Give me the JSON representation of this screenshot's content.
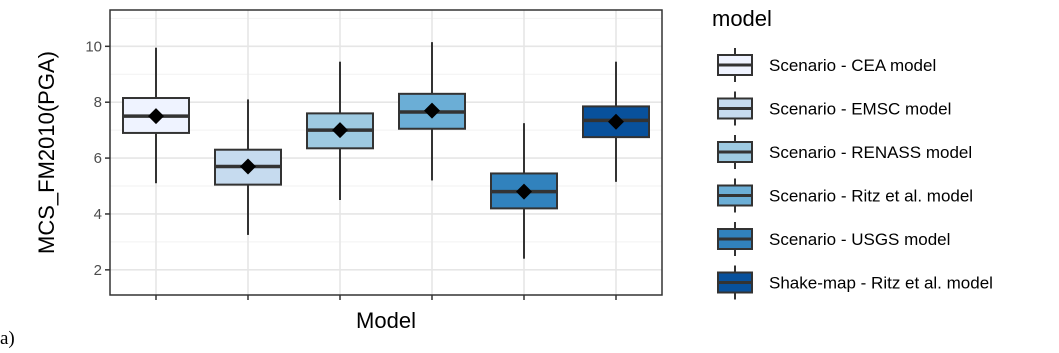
{
  "panel_label": "a)",
  "chart_data": {
    "type": "box",
    "title": "",
    "xlabel": "Model",
    "ylabel": "MCS_FM2010(PGA)",
    "ylim": [
      1.1,
      11.3
    ],
    "yticks": [
      2,
      4,
      6,
      8,
      10
    ],
    "grid": true,
    "legend": {
      "title": "model",
      "position": "right"
    },
    "series": [
      {
        "name": "Scenario - CEA model",
        "color": "#eff3ff",
        "whisker_low": 5.1,
        "q1": 6.9,
        "median": 7.5,
        "q3": 8.15,
        "whisker_high": 9.95,
        "mean": 7.5
      },
      {
        "name": "Scenario - EMSC model",
        "color": "#c6dbef",
        "whisker_low": 3.25,
        "q1": 5.05,
        "median": 5.7,
        "q3": 6.3,
        "whisker_high": 8.1,
        "mean": 5.7
      },
      {
        "name": "Scenario - RENASS model",
        "color": "#9ecae1",
        "whisker_low": 4.5,
        "q1": 6.35,
        "median": 7.0,
        "q3": 7.6,
        "whisker_high": 9.45,
        "mean": 7.0
      },
      {
        "name": "Scenario - Ritz et al. model",
        "color": "#6baed6",
        "whisker_low": 5.2,
        "q1": 7.05,
        "median": 7.65,
        "q3": 8.3,
        "whisker_high": 10.15,
        "mean": 7.7
      },
      {
        "name": "Scenario - USGS model",
        "color": "#3182bd",
        "whisker_low": 2.4,
        "q1": 4.2,
        "median": 4.8,
        "q3": 5.45,
        "whisker_high": 7.25,
        "mean": 4.8
      },
      {
        "name": "Shake-map - Ritz et al. model",
        "color": "#08519c",
        "whisker_low": 5.15,
        "q1": 6.75,
        "median": 7.35,
        "q3": 7.85,
        "whisker_high": 9.45,
        "mean": 7.3
      }
    ]
  }
}
